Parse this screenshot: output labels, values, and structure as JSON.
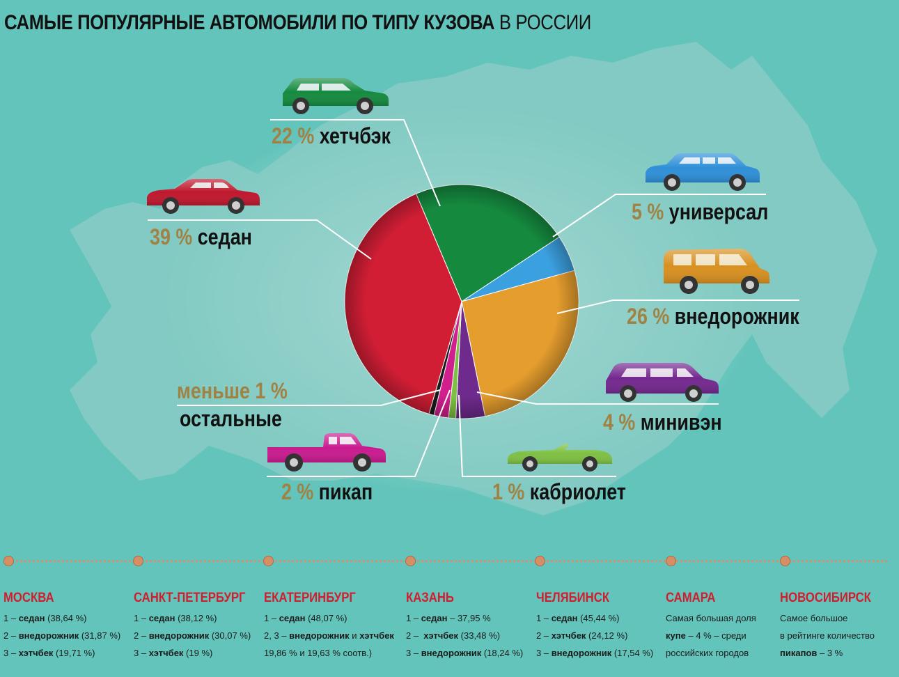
{
  "title": {
    "bold": "САМЫЕ ПОПУЛЯРНЫЕ АВТОМОБИЛИ ПО ТИПУ КУЗОВА",
    "regular": "В РОССИИ"
  },
  "chart_data": {
    "type": "pie",
    "slices": [
      {
        "label": "хетчбэк",
        "pct_label": "22 %",
        "value": 22,
        "color": "#158a3f"
      },
      {
        "label": "универсал",
        "pct_label": "5 %",
        "value": 5,
        "color": "#3ba0e0"
      },
      {
        "label": "внедорожник",
        "pct_label": "26 %",
        "value": 26,
        "color": "#e59d2e"
      },
      {
        "label": "минивэн",
        "pct_label": "4 %",
        "value": 4,
        "color": "#6e2a8c"
      },
      {
        "label": "кабриолет",
        "pct_label": "1 %",
        "value": 1,
        "color": "#7ec043"
      },
      {
        "label": "пикап",
        "pct_label": "2 %",
        "value": 2,
        "color": "#d1208e"
      },
      {
        "label": "остальные",
        "pct_label": "меньше 1 %",
        "value": 0.7,
        "color": "#1a1a1a"
      },
      {
        "label": "седан",
        "pct_label": "39 %",
        "value": 39,
        "color": "#d11e35"
      }
    ]
  },
  "cities": [
    {
      "name": "МОСКВА",
      "lines": [
        [
          "1 – ",
          "седан",
          " (38,64 %)"
        ],
        [
          "2 – ",
          "внедорожник",
          " (31,87 %)"
        ],
        [
          "3 – ",
          "хэтчбек",
          " (19,71 %)"
        ]
      ]
    },
    {
      "name": "САНКТ-ПЕТЕРБУРГ",
      "lines": [
        [
          "1 – ",
          "седан",
          " (38,12 %)"
        ],
        [
          "2 – ",
          "внедорожник",
          " (30,07 %)"
        ],
        [
          "3 – ",
          "хэтчбек",
          " (19 %)"
        ]
      ]
    },
    {
      "name": "ЕКАТЕРИНБУРГ",
      "lines": [
        [
          "1 – ",
          "седан",
          " (48,07 %)"
        ],
        [
          "2, 3 – ",
          "внедорожник",
          " и "
        ],
        [
          "19,86 % и 19,63 % соотв.)",
          "",
          ""
        ]
      ],
      "line2_extra": "хэтчбек"
    },
    {
      "name": "КАЗАНЬ",
      "lines": [
        [
          "1 – ",
          "седан",
          " – 37,95 %"
        ],
        [
          "2 –  ",
          "хэтчбек",
          " (33,48 %)"
        ],
        [
          "3 – ",
          "внедорожник",
          " (18,24 %)"
        ]
      ]
    },
    {
      "name": "ЧЕЛЯБИНСК",
      "lines": [
        [
          "1 – ",
          "седан",
          " (45,44 %)"
        ],
        [
          "2 – ",
          "хэтчбек",
          " (24,12 %)"
        ],
        [
          "3 – ",
          "внедорожник",
          " (17,54 %)"
        ]
      ]
    },
    {
      "name": "САМАРА",
      "lines": [
        [
          "Самая большая доля",
          "",
          ""
        ],
        [
          "",
          "купе",
          " – 4 % – среди"
        ],
        [
          "российских городов",
          "",
          ""
        ]
      ]
    },
    {
      "name": "НОВОСИБИРСК",
      "lines": [
        [
          "Самое большое",
          "",
          ""
        ],
        [
          "в рейтинге количество",
          "",
          ""
        ],
        [
          "",
          "пикапов",
          " – 3 %"
        ]
      ]
    }
  ]
}
